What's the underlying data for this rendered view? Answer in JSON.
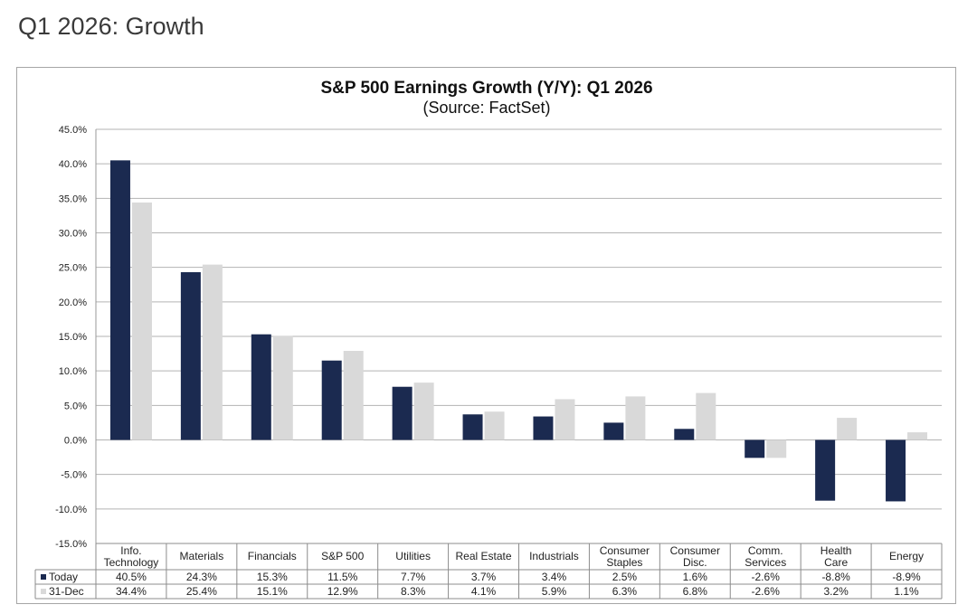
{
  "page": {
    "title": "Q1 2026: Growth"
  },
  "colors": {
    "today": "#1b2a50",
    "dec31": "#d9d9d9",
    "grid": "#b3b3b3"
  },
  "chart_data": {
    "type": "bar",
    "title": "S&P 500 Earnings Growth (Y/Y): Q1 2026",
    "subtitle": "(Source: FactSet)",
    "xlabel": "",
    "ylabel": "",
    "ylim": [
      -15,
      45
    ],
    "yticks": [
      45,
      40,
      35,
      30,
      25,
      20,
      15,
      10,
      5,
      0,
      -5,
      -10,
      -15
    ],
    "ytick_labels": [
      "45.0%",
      "40.0%",
      "35.0%",
      "30.0%",
      "25.0%",
      "20.0%",
      "15.0%",
      "10.0%",
      "5.0%",
      "0.0%",
      "-5.0%",
      "-10.0%",
      "-15.0%"
    ],
    "grid": true,
    "categories": [
      [
        "Info.",
        "Technology"
      ],
      [
        "Materials"
      ],
      [
        "Financials"
      ],
      [
        "S&P 500"
      ],
      [
        "Utilities"
      ],
      [
        "Real Estate"
      ],
      [
        "Industrials"
      ],
      [
        "Consumer",
        "Staples"
      ],
      [
        "Consumer",
        "Disc."
      ],
      [
        "Comm.",
        "Services"
      ],
      [
        "Health",
        "Care"
      ],
      [
        "Energy"
      ]
    ],
    "series": [
      {
        "name": "Today",
        "values": [
          40.5,
          24.3,
          15.3,
          11.5,
          7.7,
          3.7,
          3.4,
          2.5,
          1.6,
          -2.6,
          -8.8,
          -8.9
        ],
        "labels": [
          "40.5%",
          "24.3%",
          "15.3%",
          "11.5%",
          "7.7%",
          "3.7%",
          "3.4%",
          "2.5%",
          "1.6%",
          "-2.6%",
          "-8.8%",
          "-8.9%"
        ]
      },
      {
        "name": "31-Dec",
        "values": [
          34.4,
          25.4,
          15.1,
          12.9,
          8.3,
          4.1,
          5.9,
          6.3,
          6.8,
          -2.6,
          3.2,
          1.1
        ],
        "labels": [
          "34.4%",
          "25.4%",
          "15.1%",
          "12.9%",
          "8.3%",
          "4.1%",
          "5.9%",
          "6.3%",
          "6.8%",
          "-2.6%",
          "3.2%",
          "1.1%"
        ]
      }
    ]
  }
}
